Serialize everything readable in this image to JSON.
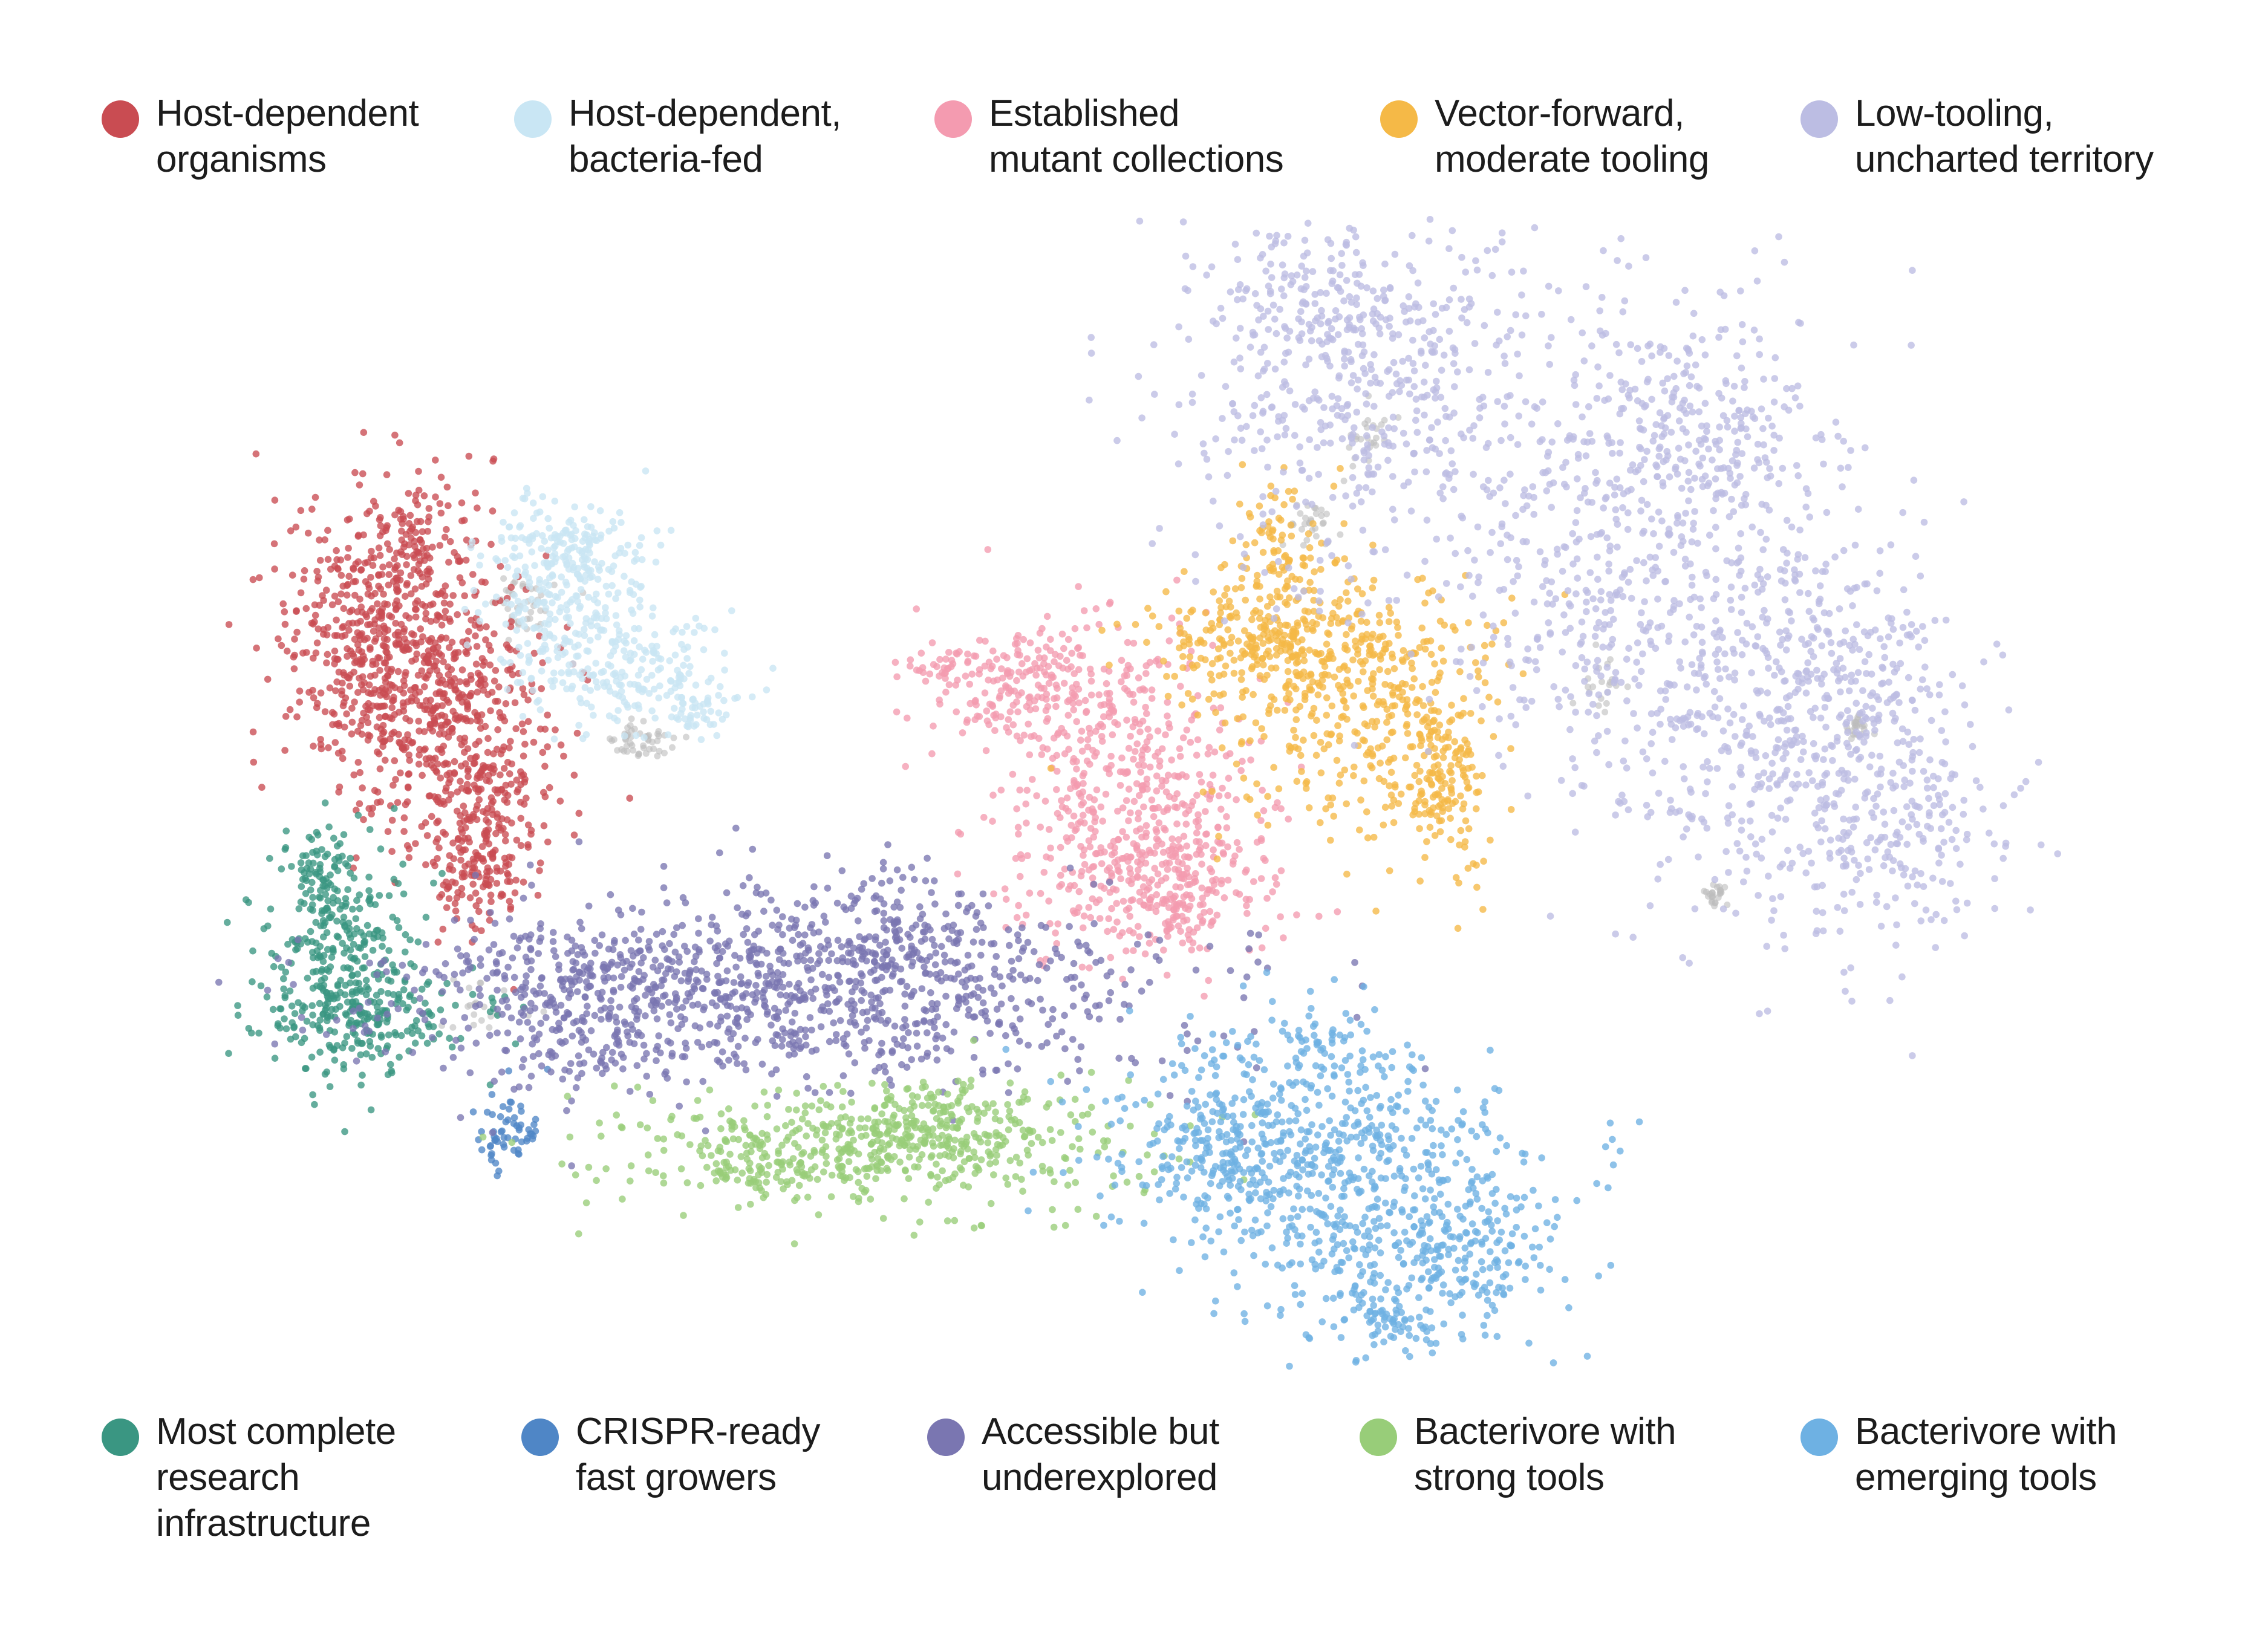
{
  "chart_data": {
    "type": "scatter",
    "title": "",
    "xlabel": "",
    "ylabel": "",
    "axes_visible": false,
    "grid": false,
    "legend_placement": "top and bottom rows",
    "noise_color": "#bdbdbd",
    "series": [
      {
        "name": "Host-dependent\norganisms",
        "color": "#c94c52"
      },
      {
        "name": "Host-dependent,\nbacteria-fed",
        "color": "#c9e6f4"
      },
      {
        "name": "Established\nmutant collections",
        "color": "#f49bb0"
      },
      {
        "name": "Vector-forward,\nmoderate tooling",
        "color": "#f5b947"
      },
      {
        "name": "Low-tooling,\nuncharted territory",
        "color": "#bcbde3"
      },
      {
        "name": "Most complete\nresearch\ninfrastructure",
        "color": "#3a9682"
      },
      {
        "name": "CRISPR-ready\nfast growers",
        "color": "#4f86c6"
      },
      {
        "name": "Accessible but\nunderexplored",
        "color": "#7a76b1"
      },
      {
        "name": "Bacterivore with\nstrong tools",
        "color": "#98cd79"
      },
      {
        "name": "Bacterivore with\nemerging tools",
        "color": "#6eb1e3"
      }
    ]
  },
  "legend": {
    "top": [
      {
        "label": "Host-dependent\norganisms",
        "color": "#c94c52"
      },
      {
        "label": "Host-dependent,\nbacteria-fed",
        "color": "#c9e6f4"
      },
      {
        "label": "Established\nmutant collections",
        "color": "#f49bb0"
      },
      {
        "label": "Vector-forward,\nmoderate tooling",
        "color": "#f5b947"
      },
      {
        "label": "Low-tooling,\nuncharted territory",
        "color": "#bcbde3"
      }
    ],
    "bottom": [
      {
        "label": "Most complete\nresearch\ninfrastructure",
        "color": "#3a9682"
      },
      {
        "label": "CRISPR-ready\nfast growers",
        "color": "#4f86c6"
      },
      {
        "label": "Accessible but\nunderexplored",
        "color": "#7a76b1"
      },
      {
        "label": "Bacterivore with\nstrong tools",
        "color": "#98cd79"
      },
      {
        "label": "Bacterivore with\nemerging tools",
        "color": "#6eb1e3"
      }
    ]
  }
}
